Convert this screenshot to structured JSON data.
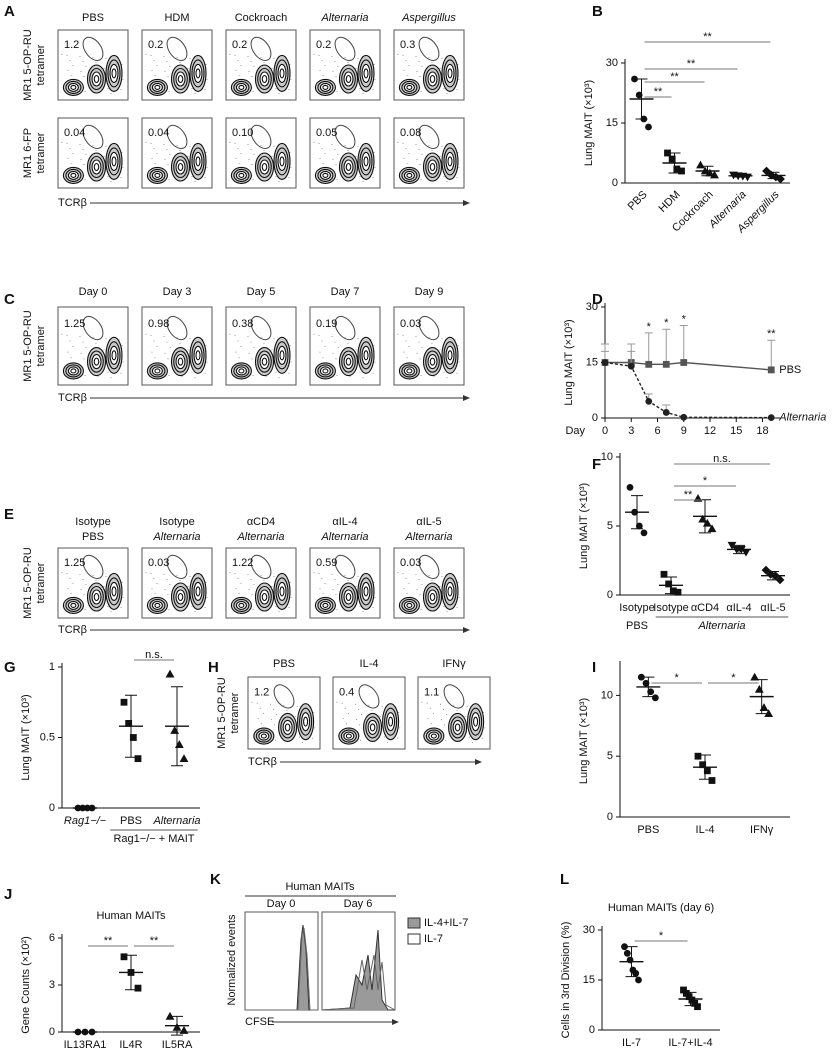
{
  "panel_letters": [
    "A",
    "B",
    "C",
    "D",
    "E",
    "F",
    "G",
    "H",
    "I",
    "J",
    "K",
    "L"
  ],
  "flow_panels": [
    {
      "ylabels": [
        [
          "MR1 5-OP-RU",
          "tetramer"
        ],
        [
          "MR1 6-FP",
          "tetramer"
        ]
      ],
      "xlabel": "TCRβ",
      "columns": [
        {
          "title": [
            {
              "text": "PBS",
              "italic": false
            }
          ],
          "gates": [
            "1.2",
            "0.04"
          ]
        },
        {
          "title": [
            {
              "text": "HDM",
              "italic": false
            }
          ],
          "gates": [
            "0.2",
            "0.04"
          ]
        },
        {
          "title": [
            {
              "text": "Cockroach",
              "italic": false
            }
          ],
          "gates": [
            "0.2",
            "0.10"
          ]
        },
        {
          "title": [
            {
              "text": "Alternaria",
              "italic": true
            }
          ],
          "gates": [
            "0.2",
            "0.05"
          ]
        },
        {
          "title": [
            {
              "text": "Aspergillus",
              "italic": true
            }
          ],
          "gates": [
            "0.3",
            "0.08"
          ]
        }
      ]
    },
    {
      "ylabels": [
        [
          "MR1 5-OP-RU",
          "tetramer"
        ]
      ],
      "xlabel": "TCRβ",
      "columns": [
        {
          "title": [
            {
              "text": "Day 0",
              "italic": false
            }
          ],
          "gates": [
            "1.25"
          ]
        },
        {
          "title": [
            {
              "text": "Day 3",
              "italic": false
            }
          ],
          "gates": [
            "0.98"
          ]
        },
        {
          "title": [
            {
              "text": "Day 5",
              "italic": false
            }
          ],
          "gates": [
            "0.38"
          ]
        },
        {
          "title": [
            {
              "text": "Day 7",
              "italic": false
            }
          ],
          "gates": [
            "0.19"
          ]
        },
        {
          "title": [
            {
              "text": "Day 9",
              "italic": false
            }
          ],
          "gates": [
            "0.03"
          ]
        }
      ]
    },
    {
      "ylabels": [
        [
          "MR1 5-OP-RU",
          "tetramer"
        ]
      ],
      "xlabel": "TCRβ",
      "columns": [
        {
          "title": [
            {
              "text": "Isotype",
              "italic": false
            },
            {
              "text": "PBS",
              "italic": false
            }
          ],
          "gates": [
            "1.25"
          ]
        },
        {
          "title": [
            {
              "text": "Isotype",
              "italic": false
            },
            {
              "text": "Alternaria",
              "italic": true
            }
          ],
          "gates": [
            "0.03"
          ]
        },
        {
          "title": [
            {
              "text": "αCD4",
              "italic": false
            },
            {
              "text": "Alternaria",
              "italic": true
            }
          ],
          "gates": [
            "1.22"
          ]
        },
        {
          "title": [
            {
              "text": "αIL-4",
              "italic": false
            },
            {
              "text": "Alternaria",
              "italic": true
            }
          ],
          "gates": [
            "0.59"
          ]
        },
        {
          "title": [
            {
              "text": "αIL-5",
              "italic": false
            },
            {
              "text": "Alternaria",
              "italic": true
            }
          ],
          "gates": [
            "0.03"
          ]
        }
      ]
    },
    {
      "ylabels": [
        [
          "MR1 5-OP-RU",
          "tetramer"
        ]
      ],
      "xlabel": "TCRβ",
      "columns": [
        {
          "title": [
            {
              "text": "PBS",
              "italic": false
            }
          ],
          "gates": [
            "1.2"
          ]
        },
        {
          "title": [
            {
              "text": "IL-4",
              "italic": false
            }
          ],
          "gates": [
            "0.4"
          ]
        },
        {
          "title": [
            {
              "text": "IFNγ",
              "italic": false
            }
          ],
          "gates": [
            "1.1"
          ]
        }
      ]
    }
  ],
  "histogram_panel": {
    "title": "Human MAITs",
    "days": [
      "Day 0",
      "Day 6"
    ],
    "ylabel": "Normalized events",
    "xlabel": "CFSE",
    "legend": [
      {
        "name": "IL-4+IL-7",
        "color": "#9a9a9a"
      },
      {
        "name": "IL-7",
        "color": "#ffffff"
      }
    ]
  },
  "chart_data": [
    {
      "type": "dot",
      "ylabel": "Lung MAIT (×10³)",
      "ylim": [
        0,
        30
      ],
      "yticks": [
        0,
        15,
        30
      ],
      "categories": [
        "PBS",
        "HDM",
        "Cockroach",
        "Alternaria",
        "Aspergillus"
      ],
      "italic": [
        false,
        false,
        false,
        true,
        true
      ],
      "markers": [
        "circle",
        "square",
        "triangle",
        "triangle-down",
        "diamond"
      ],
      "points": [
        [
          26,
          22,
          16,
          14
        ],
        [
          7.5,
          6,
          3.5,
          3
        ],
        [
          4.5,
          3,
          2.5,
          2
        ],
        [
          2,
          1.8,
          1.7,
          1.5
        ],
        [
          3,
          2,
          1.5,
          1
        ]
      ],
      "mean": [
        21,
        5,
        3,
        1.8,
        1.9
      ],
      "sd": [
        5,
        2.5,
        1.2,
        0.3,
        0.8
      ],
      "brackets": [
        {
          "from": 0,
          "to": 1,
          "label": "**"
        },
        {
          "from": 0,
          "to": 2,
          "label": "**"
        },
        {
          "from": 0,
          "to": 3,
          "label": "**"
        },
        {
          "from": 0,
          "to": 4,
          "label": "**"
        }
      ]
    },
    {
      "type": "line",
      "xlabel": "Day",
      "ylabel": "Lung MAIT (×10³)",
      "x": [
        0,
        3,
        5,
        7,
        9,
        19
      ],
      "xlim": [
        0,
        20
      ],
      "xticks": [
        0,
        3,
        6,
        9,
        12,
        15,
        18
      ],
      "ylim": [
        0,
        30
      ],
      "yticks": [
        0,
        15,
        30
      ],
      "series": [
        {
          "name": "PBS",
          "italic": false,
          "color": "#555555",
          "marker": "square",
          "dash": "none",
          "values": [
            15,
            15,
            14.5,
            14.5,
            15,
            13
          ],
          "error": [
            5,
            5,
            8.5,
            9.5,
            10,
            8
          ]
        },
        {
          "name": "Alternaria",
          "italic": true,
          "color": "#222222",
          "marker": "circle",
          "dash": "3,2",
          "values": [
            15,
            14,
            4.5,
            1.5,
            0.2,
            0.1
          ],
          "error": [
            3,
            4,
            2,
            2,
            0,
            0
          ]
        }
      ],
      "annotations": [
        {
          "index": 2,
          "label": "*"
        },
        {
          "index": 3,
          "label": "*"
        },
        {
          "index": 4,
          "label": "*"
        },
        {
          "index": 5,
          "label": "**"
        }
      ]
    },
    {
      "type": "dot",
      "ylabel": "Lung MAIT (×10³)",
      "ylim": [
        0,
        10
      ],
      "yticks": [
        0,
        5,
        10
      ],
      "categories": [
        "Isotype",
        "Isotype",
        "αCD4",
        "αIL-4",
        "αIL-5"
      ],
      "italic": [
        false,
        false,
        false,
        false,
        false
      ],
      "markers": [
        "circle",
        "square",
        "triangle",
        "triangle-down",
        "diamond"
      ],
      "points": [
        [
          7.8,
          6,
          5,
          4.5
        ],
        [
          1.5,
          0.8,
          0.3,
          0.2
        ],
        [
          7,
          5.5,
          5.2,
          4.8
        ],
        [
          3.6,
          3.3,
          3.3,
          3.1
        ],
        [
          1.8,
          1.5,
          1.4,
          1.1
        ]
      ],
      "mean": [
        6,
        0.7,
        5.7,
        3.3,
        1.4
      ],
      "sd": [
        1.2,
        0.6,
        1.2,
        0.3,
        0.3
      ],
      "brackets": [
        {
          "from": 1,
          "to": 2,
          "label": "**"
        },
        {
          "from": 1,
          "to": 3,
          "label": "*"
        },
        {
          "from": 1,
          "to": 4,
          "label": "n.s."
        }
      ],
      "groups": [
        {
          "label": "PBS",
          "from": 0,
          "to": 0,
          "italic": false
        },
        {
          "label": "Alternaria",
          "from": 1,
          "to": 4,
          "italic": true
        }
      ]
    },
    {
      "type": "dot",
      "ylabel": "Lung MAIT (×10³)",
      "ylim": [
        0,
        1
      ],
      "yticks": [
        0,
        0.5,
        1
      ],
      "categories": [
        "Rag1−/−",
        "PBS",
        "Alternaria"
      ],
      "italic": [
        true,
        false,
        true
      ],
      "markers": [
        "circle",
        "square",
        "triangle"
      ],
      "points": [
        [
          0,
          0,
          0,
          0
        ],
        [
          0.75,
          0.6,
          0.5,
          0.35
        ],
        [
          0.95,
          0.55,
          0.45,
          0.35
        ]
      ],
      "mean": [
        0,
        0.58,
        0.58
      ],
      "sd": [
        0,
        0.22,
        0.28
      ],
      "brackets": [
        {
          "from": 1,
          "to": 2,
          "label": "n.s."
        }
      ],
      "groups": [
        {
          "label": "Rag1−/− + MAIT",
          "from": 1,
          "to": 2,
          "italic": false
        }
      ]
    },
    {
      "type": "dot",
      "ylabel": "Lung MAIT (×10³)",
      "ylim": [
        0,
        12.5
      ],
      "yticks": [
        0,
        5,
        10
      ],
      "categories": [
        "PBS",
        "IL-4",
        "IFNγ"
      ],
      "italic": [
        false,
        false,
        false
      ],
      "markers": [
        "circle",
        "square",
        "triangle"
      ],
      "points": [
        [
          11.5,
          11,
          10.3,
          9.8
        ],
        [
          5,
          4.3,
          3.8,
          3
        ],
        [
          11.5,
          10.5,
          9,
          8.5
        ]
      ],
      "mean": [
        10.7,
        4.1,
        9.9
      ],
      "sd": [
        0.8,
        1,
        1.4
      ],
      "brackets": [
        {
          "from": 0,
          "to": 1,
          "label": "*"
        },
        {
          "from": 1,
          "to": 2,
          "label": "*"
        }
      ]
    },
    {
      "type": "dot",
      "title": "Human MAITs",
      "ylabel": "Gene Counts (×10²)",
      "ylim": [
        0,
        6
      ],
      "yticks": [
        0,
        3,
        6
      ],
      "categories": [
        "IL13RA1",
        "IL4R",
        "IL5RA"
      ],
      "italic": [
        false,
        false,
        false
      ],
      "markers": [
        "circle",
        "square",
        "triangle"
      ],
      "points": [
        [
          0,
          0,
          0
        ],
        [
          4.8,
          3.8,
          2.8
        ],
        [
          1,
          0.3,
          0.1
        ]
      ],
      "mean": [
        0,
        3.8,
        0.4
      ],
      "sd": [
        0,
        1.1,
        0.6
      ],
      "brackets": [
        {
          "from": 0,
          "to": 1,
          "label": "**"
        },
        {
          "from": 1,
          "to": 2,
          "label": "**"
        }
      ]
    },
    {
      "type": "dot",
      "title": "Human MAITs (day 6)",
      "ylabel": "Cells in 3rd Division (%)",
      "ylim": [
        0,
        30
      ],
      "yticks": [
        0,
        15,
        30
      ],
      "categories": [
        "IL-7",
        "IL-7+IL-4"
      ],
      "italic": [
        false,
        false
      ],
      "markers": [
        "circle",
        "square"
      ],
      "points": [
        [
          25,
          23,
          21,
          18,
          17,
          15
        ],
        [
          12,
          11,
          10,
          9,
          8,
          7
        ]
      ],
      "mean": [
        20.5,
        9.3
      ],
      "sd": [
        4.5,
        2
      ],
      "brackets": [
        {
          "from": 0,
          "to": 1,
          "label": "*"
        }
      ]
    }
  ]
}
